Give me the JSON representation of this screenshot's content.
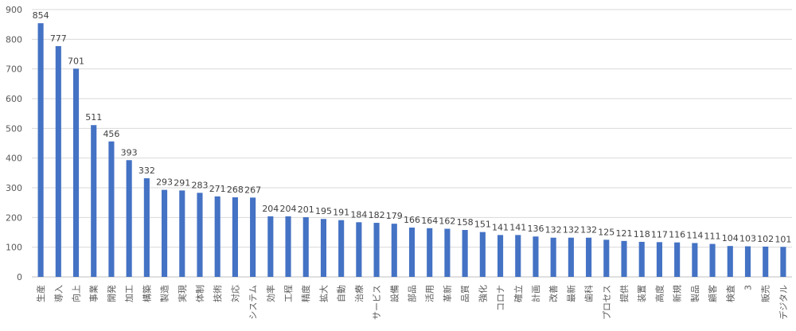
{
  "chart_data": {
    "type": "bar",
    "title": "",
    "xlabel": "",
    "ylabel": "",
    "ylim": [
      0,
      900
    ],
    "yticks": [
      0,
      100,
      200,
      300,
      400,
      500,
      600,
      700,
      800,
      900
    ],
    "grid": true,
    "legend": "none",
    "bar_color": "#4472c4",
    "grid_color": "#d9d9d9",
    "categories": [
      "生産",
      "導入",
      "向上",
      "事業",
      "開発",
      "加工",
      "構築",
      "製造",
      "実現",
      "体制",
      "技術",
      "対応",
      "システム",
      "効率",
      "工程",
      "精度",
      "拡大",
      "自動",
      "治療",
      "サービス",
      "設備",
      "部品",
      "活用",
      "革新",
      "品質",
      "強化",
      "コロナ",
      "確立",
      "計画",
      "改善",
      "最新",
      "歯科",
      "プロセス",
      "提供",
      "装置",
      "高度",
      "新規",
      "製品",
      "顧客",
      "検査",
      "3",
      "販売",
      "デジタル"
    ],
    "values": [
      854,
      777,
      701,
      511,
      456,
      393,
      332,
      293,
      291,
      283,
      271,
      268,
      267,
      204,
      204,
      201,
      195,
      191,
      184,
      182,
      179,
      166,
      164,
      162,
      158,
      151,
      141,
      141,
      136,
      132,
      132,
      132,
      125,
      121,
      118,
      117,
      116,
      114,
      111,
      104,
      103,
      102,
      101
    ]
  }
}
